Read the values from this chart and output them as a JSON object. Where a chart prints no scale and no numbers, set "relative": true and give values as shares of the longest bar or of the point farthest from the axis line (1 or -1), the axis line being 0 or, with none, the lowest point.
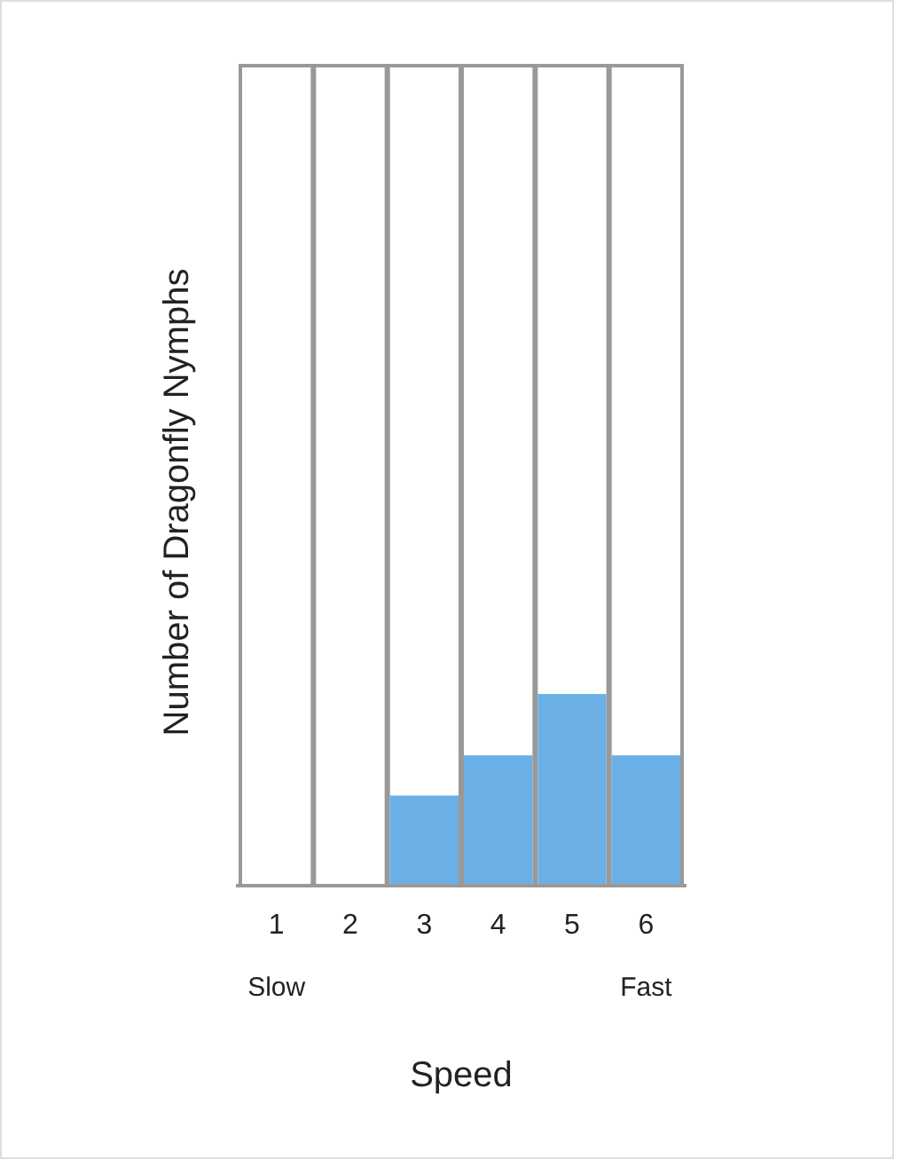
{
  "chart_data": {
    "type": "bar",
    "relative": true,
    "xlabel": "Speed",
    "ylabel": "Number of Dragonfly Nymphs",
    "categories": [
      "1",
      "2",
      "3",
      "4",
      "5",
      "6"
    ],
    "values": [
      0,
      0,
      0.47,
      0.68,
      1,
      0.68
    ],
    "color": "#6ab0e6",
    "annotations": [
      "Slow",
      "Fast"
    ]
  }
}
